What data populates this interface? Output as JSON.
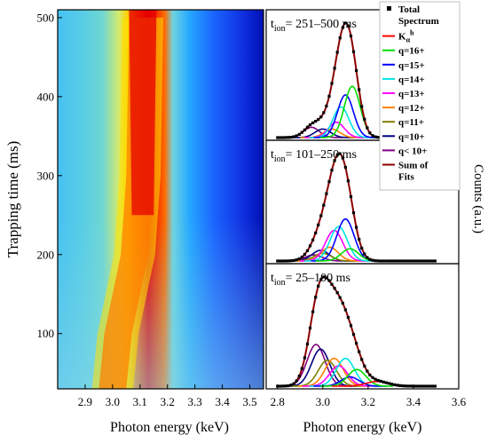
{
  "chart_data": [
    {
      "type": "heatmap",
      "xlabel": "Photon energy (keV)",
      "ylabel": "Trapping time (ms)",
      "x_ticks": [
        2.9,
        3.0,
        3.1,
        3.2,
        3.3,
        3.4,
        3.5
      ],
      "y_ticks": [
        100,
        200,
        300,
        400,
        500
      ],
      "xlim": [
        2.8,
        3.55
      ],
      "ylim": [
        30,
        510
      ],
      "colormap": [
        "#0000c8",
        "#1e5cff",
        "#26b6ff",
        "#b6f0d6",
        "#fff000",
        "#ff8c00",
        "#e00000"
      ],
      "peak_center_keV": [
        {
          "t": 30,
          "center": 3.0
        },
        {
          "t": 100,
          "center": 3.02
        },
        {
          "t": 200,
          "center": 3.08
        },
        {
          "t": 300,
          "center": 3.1
        },
        {
          "t": 500,
          "center": 3.11
        }
      ]
    },
    {
      "type": "line",
      "xlabel": "Photon energy (keV)",
      "ylabel": "Counts (a.u.)",
      "x_ticks": [
        2.8,
        3.0,
        3.2,
        3.4,
        3.6
      ],
      "xlim": [
        2.75,
        3.6
      ],
      "panels": [
        {
          "label_main": "t",
          "label_sub": "ion",
          "label_rest": "= 251–500 ms",
          "components": [
            {
              "series": "q< 10+",
              "center": 2.95,
              "amp": 0.12,
              "sigma": 0.035
            },
            {
              "series": "q=10+",
              "center": 3.0,
              "amp": 0.1,
              "sigma": 0.035
            },
            {
              "series": "q=12+",
              "center": 3.04,
              "amp": 0.1,
              "sigma": 0.035
            },
            {
              "series": "q=13+",
              "center": 3.06,
              "amp": 0.18,
              "sigma": 0.035
            },
            {
              "series": "q=14+",
              "center": 3.08,
              "amp": 0.36,
              "sigma": 0.035
            },
            {
              "series": "q=15+",
              "center": 3.1,
              "amp": 0.5,
              "sigma": 0.035
            },
            {
              "series": "q=16+",
              "center": 3.13,
              "amp": 0.6,
              "sigma": 0.035
            }
          ]
        },
        {
          "label_main": "t",
          "label_sub": "ion",
          "label_rest": "= 101–250 ms",
          "components": [
            {
              "series": "q< 10+",
              "center": 2.96,
              "amp": 0.08,
              "sigma": 0.038
            },
            {
              "series": "q=10+",
              "center": 2.99,
              "amp": 0.14,
              "sigma": 0.038
            },
            {
              "series": "q=11+",
              "center": 3.0,
              "amp": 0.1,
              "sigma": 0.038
            },
            {
              "series": "q=12+",
              "center": 3.03,
              "amp": 0.18,
              "sigma": 0.038
            },
            {
              "series": "q=13+",
              "center": 3.05,
              "amp": 0.4,
              "sigma": 0.038
            },
            {
              "series": "q=14+",
              "center": 3.07,
              "amp": 0.45,
              "sigma": 0.038
            },
            {
              "series": "q=15+",
              "center": 3.1,
              "amp": 0.55,
              "sigma": 0.038
            },
            {
              "series": "q=16+",
              "center": 3.12,
              "amp": 0.16,
              "sigma": 0.038
            }
          ]
        },
        {
          "label_main": "t",
          "label_sub": "ion",
          "label_rest": "= 25–100 ms",
          "components": [
            {
              "series": "q< 10+",
              "center": 2.97,
              "amp": 0.45,
              "sigma": 0.04
            },
            {
              "series": "q=10+",
              "center": 2.99,
              "amp": 0.4,
              "sigma": 0.04
            },
            {
              "series": "q=11+",
              "center": 3.02,
              "amp": 0.28,
              "sigma": 0.04
            },
            {
              "series": "q=12+",
              "center": 3.05,
              "amp": 0.3,
              "sigma": 0.04
            },
            {
              "series": "q=13+",
              "center": 3.07,
              "amp": 0.22,
              "sigma": 0.04
            },
            {
              "series": "q=14+",
              "center": 3.1,
              "amp": 0.3,
              "sigma": 0.04
            },
            {
              "series": "q=15+",
              "center": 3.12,
              "amp": 0.1,
              "sigma": 0.04
            },
            {
              "series": "q=16+",
              "center": 3.15,
              "amp": 0.18,
              "sigma": 0.04
            },
            {
              "series": "Kαh",
              "center": 3.24,
              "amp": 0.05,
              "sigma": 0.05
            }
          ]
        }
      ],
      "legend": [
        {
          "label": "Total",
          "label2": "Spectrum",
          "color": "#000000",
          "kind": "square"
        },
        {
          "label": "K",
          "sub": "α",
          "sup": "h",
          "color": "#ff0000",
          "kind": "line"
        },
        {
          "label": "q=16+",
          "color": "#00dd00",
          "kind": "line"
        },
        {
          "label": "q=15+",
          "color": "#0000ff",
          "kind": "line"
        },
        {
          "label": "q=14+",
          "color": "#00e5e5",
          "kind": "line"
        },
        {
          "label": "q=13+",
          "color": "#ff00ff",
          "kind": "line"
        },
        {
          "label": "q=12+",
          "color": "#ff8000",
          "kind": "line"
        },
        {
          "label": "q=11+",
          "color": "#808000",
          "kind": "line"
        },
        {
          "label": "q=10+",
          "color": "#000080",
          "kind": "line"
        },
        {
          "label": "q< 10+",
          "color": "#800080",
          "kind": "line"
        },
        {
          "label": "Sum of",
          "label2": "Fits",
          "color": "#8b0000",
          "kind": "line"
        }
      ],
      "legend_placement": "top-right"
    }
  ]
}
